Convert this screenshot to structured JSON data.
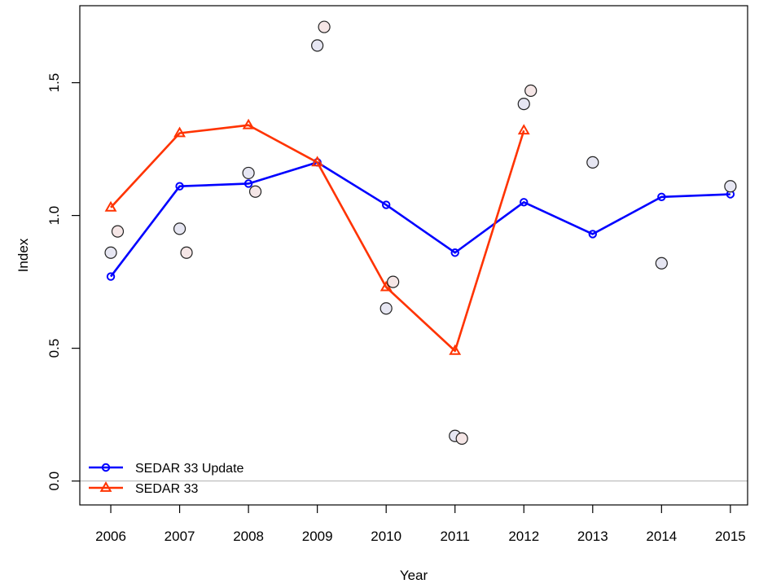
{
  "chart_data": {
    "type": "line",
    "xlabel": "Year",
    "ylabel": "Index",
    "xlim": [
      2005.55,
      2015.25
    ],
    "ylim": [
      -0.09,
      1.79
    ],
    "x_ticks": [
      2006,
      2007,
      2008,
      2009,
      2010,
      2011,
      2012,
      2013,
      2014,
      2015
    ],
    "x_tick_labels": [
      "2006",
      "2007",
      "2008",
      "2009",
      "2010",
      "2011",
      "2012",
      "2013",
      "2014",
      "2015"
    ],
    "y_ticks": [
      0.0,
      0.5,
      1.0,
      1.5
    ],
    "y_tick_labels": [
      "0.0",
      "0.5",
      "1.0",
      "1.5"
    ],
    "reference_line_y": 0.0,
    "grid": false,
    "legend_position": "bottom-left",
    "series": [
      {
        "name": "SEDAR 33 Update",
        "color": "#0000ff",
        "marker": "circle",
        "x": [
          2006,
          2007,
          2008,
          2009,
          2010,
          2011,
          2012,
          2013,
          2014,
          2015
        ],
        "values": [
          0.77,
          1.11,
          1.12,
          1.2,
          1.04,
          0.86,
          1.05,
          0.93,
          1.07,
          1.08
        ]
      },
      {
        "name": "SEDAR 33",
        "color": "#ff3300",
        "marker": "triangle",
        "x": [
          2006,
          2007,
          2008,
          2009,
          2010,
          2011,
          2012
        ],
        "values": [
          1.03,
          1.31,
          1.34,
          1.2,
          0.73,
          0.49,
          1.32
        ]
      }
    ],
    "observed_points": [
      {
        "fill": "#e6e6f2",
        "x": [
          2006,
          2007,
          2008,
          2009,
          2010,
          2011,
          2012,
          2013,
          2014,
          2015
        ],
        "values": [
          0.86,
          0.95,
          1.16,
          1.64,
          0.65,
          0.17,
          1.42,
          1.2,
          0.82,
          1.11
        ]
      },
      {
        "fill": "#f5e6e6",
        "x": [
          2006.1,
          2007.1,
          2008.1,
          2009.1,
          2010.1,
          2011.1,
          2012.1
        ],
        "values": [
          0.94,
          0.86,
          1.09,
          1.71,
          0.75,
          0.16,
          1.47
        ]
      }
    ]
  }
}
